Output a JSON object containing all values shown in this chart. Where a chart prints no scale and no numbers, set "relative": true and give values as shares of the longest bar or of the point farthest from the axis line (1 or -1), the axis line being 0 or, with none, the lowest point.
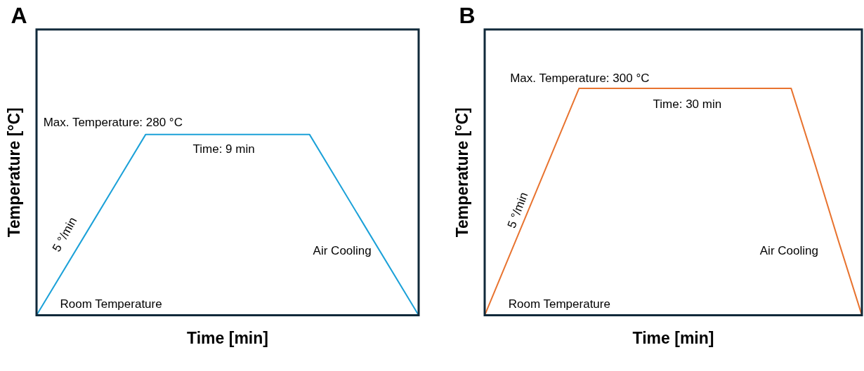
{
  "chart_data": [
    {
      "type": "line",
      "title": "A",
      "xlabel": "Time [min]",
      "ylabel": "Temperature [°C]",
      "relative": true,
      "legend": false,
      "marker": "none",
      "categories": [
        null,
        null,
        null,
        null,
        null,
        null,
        null,
        null
      ],
      "series": [
        {
          "color": "#1ba1d8",
          "values": [
            0,
            0.5,
            1,
            1,
            1,
            1,
            0.5,
            0
          ]
        }
      ],
      "annotations": [
        "Max. Temperature: 280 °C",
        "Time: 9 min",
        "5 °/min",
        "Room Temperature",
        "Air Cooling"
      ]
    },
    {
      "type": "line",
      "title": "B",
      "xlabel": "Time [min]",
      "ylabel": "Temperature [°C]",
      "relative": true,
      "legend": false,
      "marker": "none",
      "categories": [
        null,
        null,
        null,
        null,
        null,
        null,
        null,
        null,
        null,
        null,
        null,
        null,
        null,
        null,
        null,
        null,
        null
      ],
      "series": [
        {
          "color": "#e8732f",
          "values": [
            0,
            0.25,
            0.5,
            0.75,
            1,
            1,
            1,
            1,
            1,
            1,
            1,
            1,
            1,
            1,
            0.67,
            0.33,
            0
          ]
        }
      ],
      "annotations": [
        "Max. Temperature: 300 °C",
        "Time: 30 min",
        "5 °/min",
        "Room Temperature",
        "Air Cooling"
      ]
    }
  ]
}
